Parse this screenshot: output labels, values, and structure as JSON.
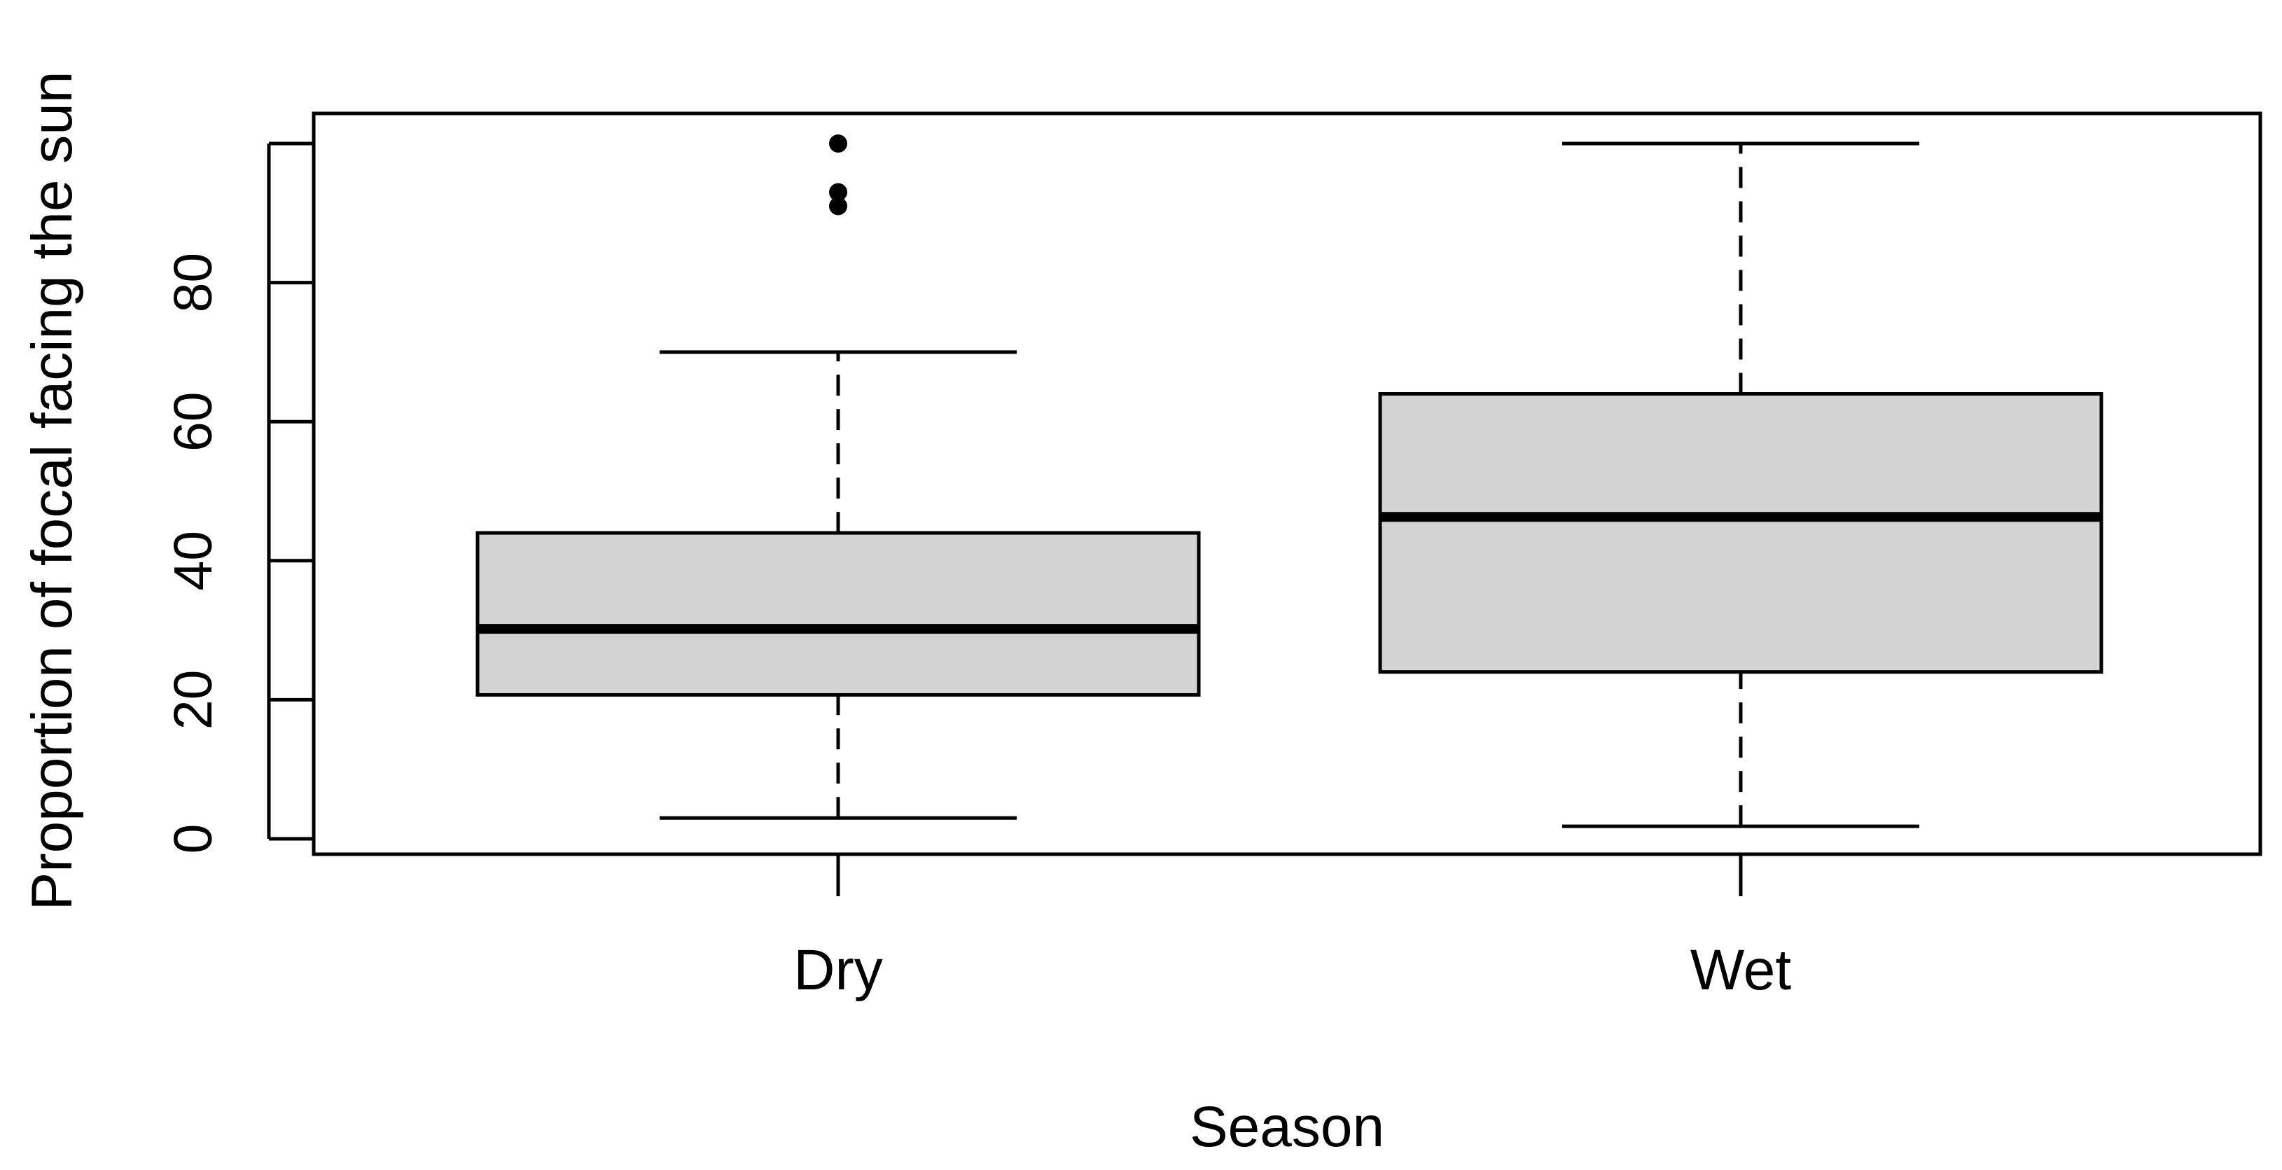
{
  "chart_data": {
    "type": "boxplot",
    "title": "",
    "xlabel": "Season",
    "ylabel": "Proportion of focal facing the sun",
    "categories": [
      "Dry",
      "Wet"
    ],
    "ylim": [
      -2.5,
      104
    ],
    "yticks": [
      0,
      20,
      40,
      60,
      80
    ],
    "ytick_labels": [
      "0",
      "20",
      "40",
      "60",
      "80"
    ],
    "grid": false,
    "legend": "none",
    "boxes": [
      {
        "category": "Dry",
        "whisker_low": 3,
        "q1": 20.7,
        "median": 30.2,
        "q3": 44,
        "whisker_high": 70,
        "outliers": [
          100,
          93,
          91
        ]
      },
      {
        "category": "Wet",
        "whisker_low": 1.8,
        "q1": 24,
        "median": 46.3,
        "q3": 64,
        "whisker_high": 100,
        "outliers": []
      }
    ],
    "colors": {
      "box_fill": "#d3d3d3",
      "stroke": "#000000",
      "background": "#ffffff"
    }
  }
}
